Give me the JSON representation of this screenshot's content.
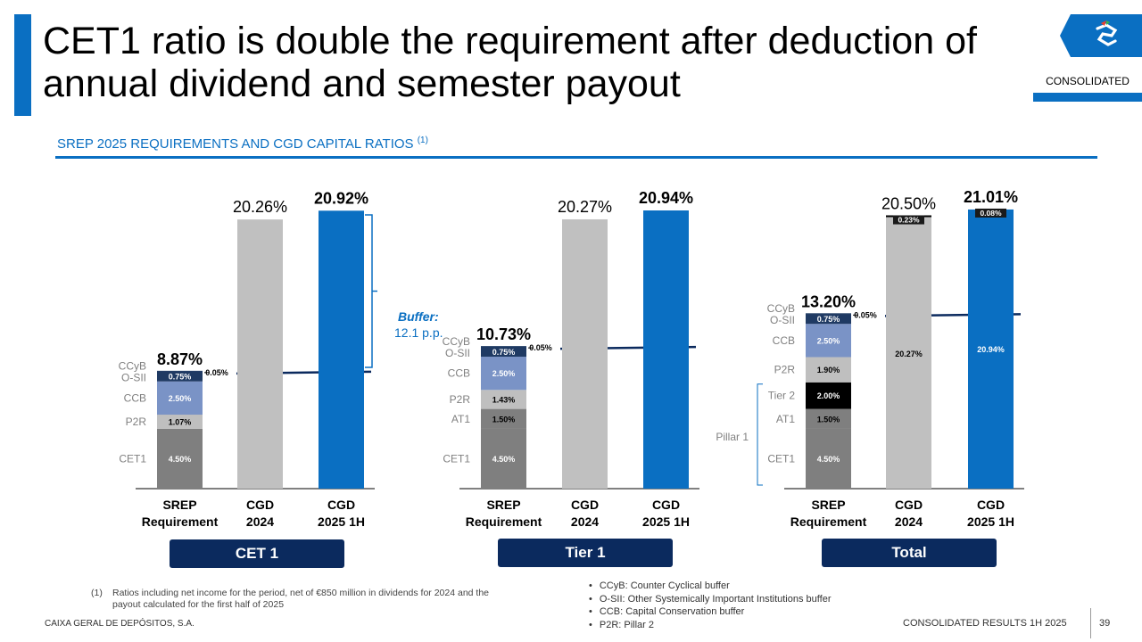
{
  "title": "CET1 ratio is double the requirement after deduction of annual dividend and semester payout",
  "badge": "CONSOLIDATED",
  "subtitle": "SREP 2025 REQUIREMENTS AND CGD CAPITAL RATIOS",
  "subtitle_note": "(1)",
  "colors": {
    "accent": "#0a6fc2",
    "navy": "#0b2a5e",
    "grey": "#c0c0c0",
    "cet1": "#7f7f7f",
    "p2r": "#bfbfbf",
    "ccb": "#7a93c6",
    "osii": "#1f3a63",
    "tier2": "#000000"
  },
  "buffer_label": "Buffer:",
  "buffer_value": "12.1 p.p.",
  "pillar1_label": "Pillar 1",
  "footnote_marker": "(1)",
  "footnote": "Ratios including net income for the period, net of €850 million in dividends for 2024 and the payout calculated for the first half of 2025",
  "bullets": [
    "CCyB: Counter Cyclical buffer",
    "O-SII: Other Systemically Important Institutions buffer",
    "CCB: Capital Conservation buffer",
    "P2R: Pillar 2"
  ],
  "footer_left": "CAIXA GERAL DE DEPÓSITOS, S.A.",
  "footer_right": "CONSOLIDATED RESULTS 1H 2025",
  "page_number": "39",
  "chart_data": [
    {
      "type": "bar",
      "group_label": "CET 1",
      "categories": [
        "SREP\nRequirement",
        "CGD\n2024",
        "CGD\n2025 1H"
      ],
      "srep": {
        "total_label": "8.87%",
        "ccyb_label": "0.05%",
        "segments": [
          {
            "name": "CET1",
            "value": 4.5,
            "label": "4.50%"
          },
          {
            "name": "P2R",
            "value": 1.07,
            "label": "1.07%"
          },
          {
            "name": "CCB",
            "value": 2.5,
            "label": "2.50%"
          },
          {
            "name": "O-SII",
            "value": 0.75,
            "label": "0.75%"
          },
          {
            "name": "CCyB",
            "value": 0.05,
            "label": ""
          }
        ]
      },
      "cgd_2024": {
        "value": 20.26,
        "label": "20.26%"
      },
      "cgd_2025": {
        "value": 20.92,
        "label": "20.92%"
      }
    },
    {
      "type": "bar",
      "group_label": "Tier 1",
      "categories": [
        "SREP\nRequirement",
        "CGD\n2024",
        "CGD\n2025 1H"
      ],
      "srep": {
        "total_label": "10.73%",
        "ccyb_label": "0.05%",
        "segments": [
          {
            "name": "CET1",
            "value": 4.5,
            "label": "4.50%"
          },
          {
            "name": "AT1",
            "value": 1.5,
            "label": "1.50%"
          },
          {
            "name": "P2R",
            "value": 1.43,
            "label": "1.43%"
          },
          {
            "name": "CCB",
            "value": 2.5,
            "label": "2.50%"
          },
          {
            "name": "O-SII",
            "value": 0.75,
            "label": "0.75%"
          },
          {
            "name": "CCyB",
            "value": 0.05,
            "label": ""
          }
        ]
      },
      "cgd_2024": {
        "value": 20.27,
        "label": "20.27%"
      },
      "cgd_2025": {
        "value": 20.94,
        "label": "20.94%"
      }
    },
    {
      "type": "bar",
      "group_label": "Total",
      "categories": [
        "SREP\nRequirement",
        "CGD\n2024",
        "CGD\n2025 1H"
      ],
      "srep": {
        "total_label": "13.20%",
        "ccyb_label": "0.05%",
        "segments": [
          {
            "name": "CET1",
            "value": 4.5,
            "label": "4.50%"
          },
          {
            "name": "AT1",
            "value": 1.5,
            "label": "1.50%"
          },
          {
            "name": "Tier 2",
            "value": 2.0,
            "label": "2.00%"
          },
          {
            "name": "P2R",
            "value": 1.9,
            "label": "1.90%"
          },
          {
            "name": "CCB",
            "value": 2.5,
            "label": "2.50%"
          },
          {
            "name": "O-SII",
            "value": 0.75,
            "label": "0.75%"
          },
          {
            "name": "CCyB",
            "value": 0.05,
            "label": ""
          }
        ]
      },
      "cgd_2024": {
        "value": 20.5,
        "label": "20.50%",
        "inner_label": "20.27%",
        "top_value": 0.23,
        "top_label": "0.23%"
      },
      "cgd_2025": {
        "value": 21.01,
        "label": "21.01%",
        "inner_label": "20.94%",
        "top_value": 0.08,
        "top_label": "0.08%"
      }
    }
  ]
}
